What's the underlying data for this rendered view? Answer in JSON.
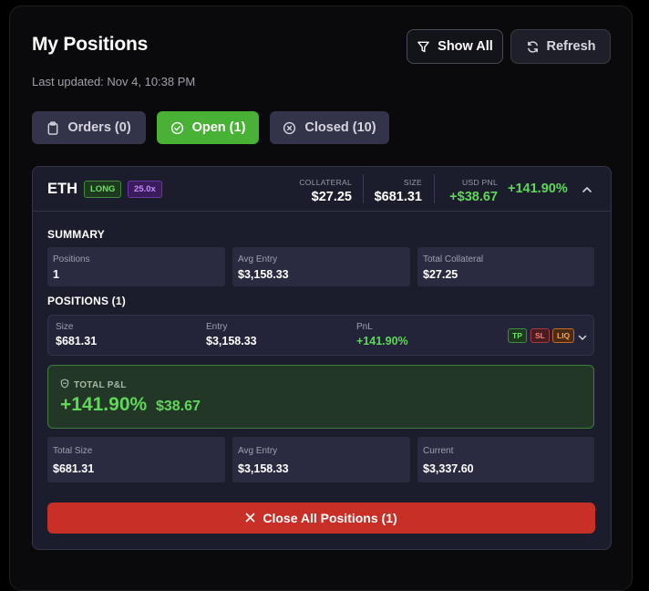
{
  "header": {
    "title": "My Positions",
    "last_updated": "Last updated: Nov 4, 10:38 PM",
    "show_all_label": "Show All",
    "refresh_label": "Refresh"
  },
  "tabs": [
    {
      "label": "Orders (0)",
      "icon": "clipboard-icon",
      "active": false
    },
    {
      "label": "Open (1)",
      "icon": "check-circle-icon",
      "active": true
    },
    {
      "label": "Closed (10)",
      "icon": "x-circle-icon",
      "active": false
    }
  ],
  "position_card": {
    "symbol": "ETH",
    "side_badge": "LONG",
    "leverage_badge": "25.0x",
    "collateral_label": "COLLATERAL",
    "collateral_value": "$27.25",
    "size_label": "SIZE",
    "size_value": "$681.31",
    "usd_pnl_label": "USD PNL",
    "usd_pnl_value": "+$38.67",
    "pnl_percent": "+141.90%",
    "summary": {
      "heading": "SUMMARY",
      "positions_label": "Positions",
      "positions_value": "1",
      "avg_entry_label": "Avg Entry",
      "avg_entry_value": "$3,158.33",
      "total_collateral_label": "Total Collateral",
      "total_collateral_value": "$27.25"
    },
    "positions": {
      "heading": "POSITIONS (1)",
      "rows": [
        {
          "size_label": "Size",
          "size_value": "$681.31",
          "entry_label": "Entry",
          "entry_value": "$3,158.33",
          "pnl_label": "PnL",
          "pnl_value": "+141.90%",
          "tp_label": "TP",
          "sl_label": "SL",
          "liq_label": "LIQ"
        }
      ]
    },
    "total_pnl": {
      "label": "TOTAL P&L",
      "percent": "+141.90%",
      "usd": "$38.67"
    },
    "footer_stats": {
      "total_size_label": "Total Size",
      "total_size_value": "$681.31",
      "avg_entry_label": "Avg Entry",
      "avg_entry_value": "$3,158.33",
      "current_label": "Current",
      "current_value": "$3,337.60"
    },
    "close_all_label": "Close All Positions (1)"
  },
  "colors": {
    "accent_green": "#49b236",
    "pnl_green": "#5fd75a",
    "danger_red": "#c72f27",
    "card_bg": "#1c1d2c"
  }
}
